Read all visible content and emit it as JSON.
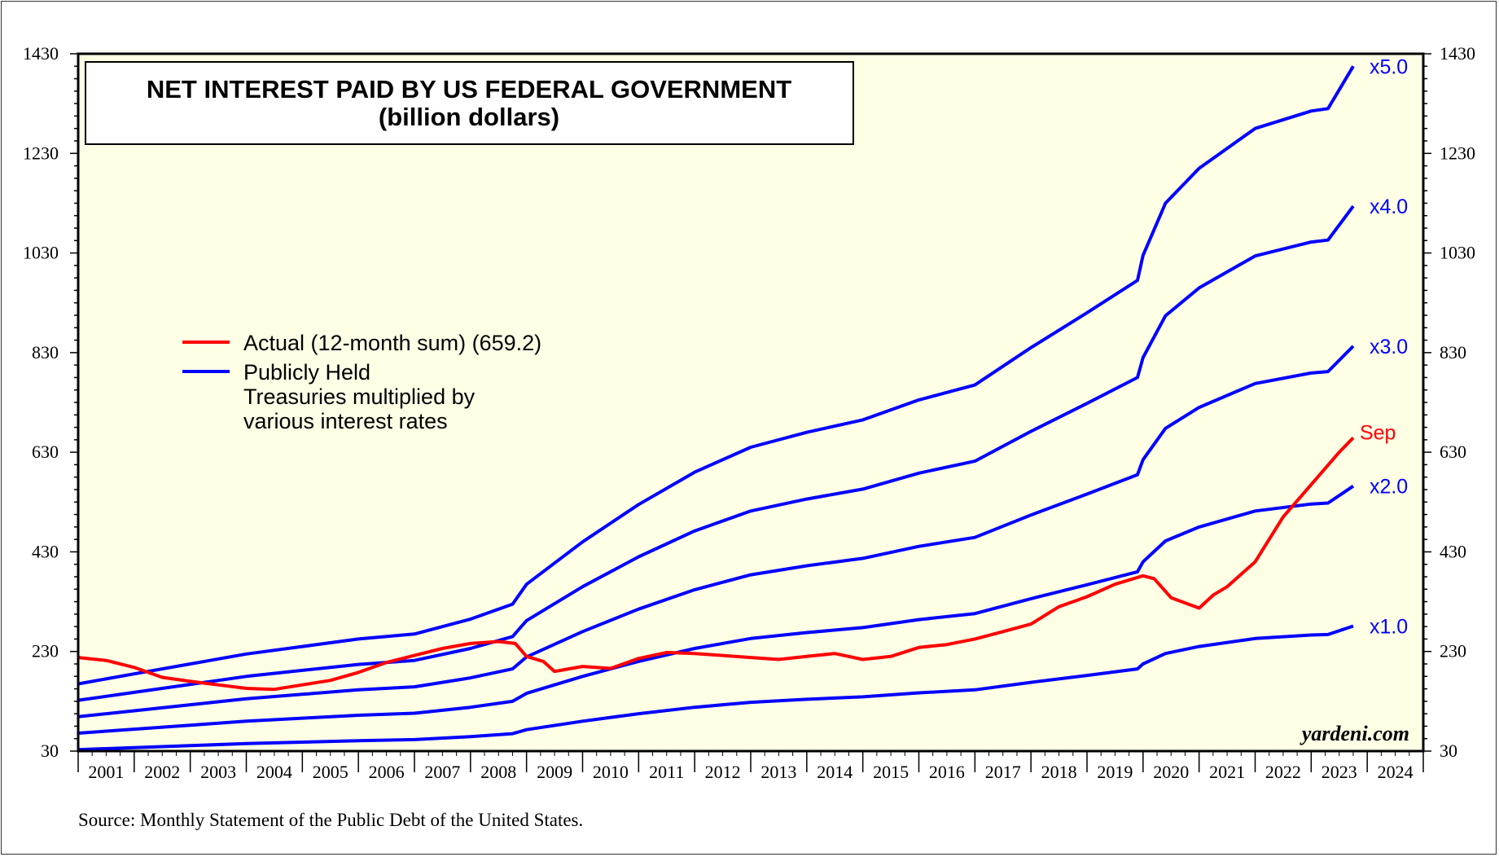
{
  "chart_data": {
    "type": "line",
    "title": "NET INTEREST PAID BY US FEDERAL GOVERNMENT",
    "subtitle": "(billion dollars)",
    "ylim": [
      30,
      1430
    ],
    "yticks": [
      30,
      230,
      430,
      630,
      830,
      1030,
      1230,
      1430
    ],
    "xlim": [
      2001,
      2025
    ],
    "year_labels": [
      "2001",
      "2002",
      "2003",
      "2004",
      "2005",
      "2006",
      "2007",
      "2008",
      "2009",
      "2010",
      "2011",
      "2012",
      "2013",
      "2014",
      "2015",
      "2016",
      "2017",
      "2018",
      "2019",
      "2020",
      "2021",
      "2022",
      "2023",
      "2024"
    ],
    "legend": {
      "placement": "left",
      "entries": [
        {
          "label": "Actual (12-month sum) (659.2)",
          "color": "#ff0000"
        },
        {
          "label_lines": [
            "Publicly Held",
            "Treasuries multiplied by",
            "various interest rates"
          ],
          "color": "#0000ff"
        }
      ]
    },
    "end_labels": [
      "x5.0",
      "x4.0",
      "x3.0",
      "x2.0",
      "x1.0"
    ],
    "annotation": "Sep",
    "watermark": "yardeni.com",
    "source": "Source: Monthly Statement of the Public Debt of the United States.",
    "colors": {
      "actual": "#ff0000",
      "multiples": "#0000ff",
      "plot_bg": "#ffffe6"
    },
    "base": {
      "name": "x1.0",
      "x": [
        2001.0,
        2002.0,
        2003.0,
        2004.0,
        2005.0,
        2006.0,
        2007.0,
        2008.0,
        2008.75,
        2009.0,
        2010.0,
        2011.0,
        2012.0,
        2013.0,
        2014.0,
        2015.0,
        2016.0,
        2017.0,
        2018.0,
        2019.0,
        2019.9,
        2020.0,
        2020.4,
        2021.0,
        2022.0,
        2023.0,
        2023.3,
        2023.75
      ],
      "y": [
        33,
        37,
        41,
        45,
        48,
        51,
        53,
        59,
        65,
        73,
        90,
        105,
        118,
        128,
        134,
        139,
        147,
        153,
        168,
        182,
        195,
        205,
        226,
        240,
        256,
        263,
        264,
        281
      ]
    },
    "multipliers": [
      1,
      2,
      3,
      4,
      5
    ],
    "actual": {
      "name": "Actual (12-month sum) (659.2)",
      "x": [
        2001.0,
        2001.5,
        2002.0,
        2002.5,
        2003.0,
        2003.5,
        2004.0,
        2004.5,
        2005.0,
        2005.5,
        2006.0,
        2006.5,
        2007.0,
        2007.5,
        2008.0,
        2008.5,
        2008.8,
        2009.0,
        2009.3,
        2009.5,
        2009.75,
        2010.0,
        2010.5,
        2011.0,
        2011.5,
        2012.0,
        2012.5,
        2013.0,
        2013.5,
        2014.0,
        2014.5,
        2015.0,
        2015.5,
        2016.0,
        2016.5,
        2017.0,
        2017.5,
        2018.0,
        2018.5,
        2019.0,
        2019.5,
        2020.0,
        2020.2,
        2020.5,
        2021.0,
        2021.25,
        2021.5,
        2022.0,
        2022.5,
        2023.0,
        2023.5,
        2023.75
      ],
      "y": [
        218,
        212,
        198,
        178,
        170,
        163,
        156,
        154,
        163,
        172,
        188,
        208,
        222,
        236,
        246,
        250,
        246,
        220,
        210,
        190,
        195,
        200,
        196,
        216,
        228,
        226,
        222,
        218,
        214,
        220,
        226,
        214,
        220,
        238,
        244,
        255,
        270,
        285,
        320,
        340,
        365,
        382,
        376,
        338,
        317,
        343,
        360,
        410,
        500,
        565,
        630,
        659
      ]
    }
  }
}
